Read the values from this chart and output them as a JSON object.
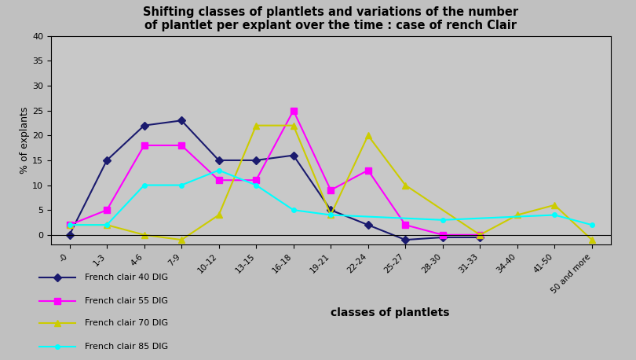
{
  "title": "Shifting classes of plantlets and variations of the number\nof plantlet per explant over the time : case of rench Clair",
  "xlabel": "classes of plantlets",
  "ylabel": "% of explants",
  "background_color": "#c0c0c0",
  "plot_bg_color": "#c8c8c8",
  "ylim": [
    -2,
    40
  ],
  "yticks": [
    0,
    5,
    10,
    15,
    20,
    25,
    30,
    35,
    40
  ],
  "categories": [
    "-0",
    "1-3",
    "4-6",
    "7-9",
    "10-12",
    "13-15",
    "16-18",
    "19-21",
    "22-24",
    "25-27",
    "28-30",
    "31-33",
    "34-40",
    "41-50",
    "50 and more"
  ],
  "series": [
    {
      "label": "French clair 40 DIG",
      "color": "#1a1a6e",
      "marker": "D",
      "markersize": 5,
      "values": [
        0,
        15,
        22,
        23,
        15,
        15,
        16,
        5,
        2,
        -1,
        -0.5,
        -0.5,
        null,
        null,
        null
      ]
    },
    {
      "label": "French clair 55 DIG",
      "color": "#FF00FF",
      "marker": "s",
      "markersize": 6,
      "values": [
        2,
        5,
        18,
        18,
        11,
        11,
        25,
        9,
        13,
        2,
        0,
        0,
        null,
        null,
        null
      ]
    },
    {
      "label": "French clair 70 DIG",
      "color": "#cccc00",
      "marker": "^",
      "markersize": 6,
      "values": [
        2,
        2,
        0,
        -1,
        4,
        22,
        22,
        4,
        20,
        10,
        null,
        0,
        4,
        6,
        -1
      ]
    },
    {
      "label": "French clair 85 DIG",
      "color": "#00ffff",
      "marker": "o",
      "markersize": 4,
      "values": [
        2,
        2,
        10,
        10,
        13,
        10,
        5,
        4,
        null,
        null,
        3,
        null,
        null,
        4,
        2
      ]
    }
  ]
}
